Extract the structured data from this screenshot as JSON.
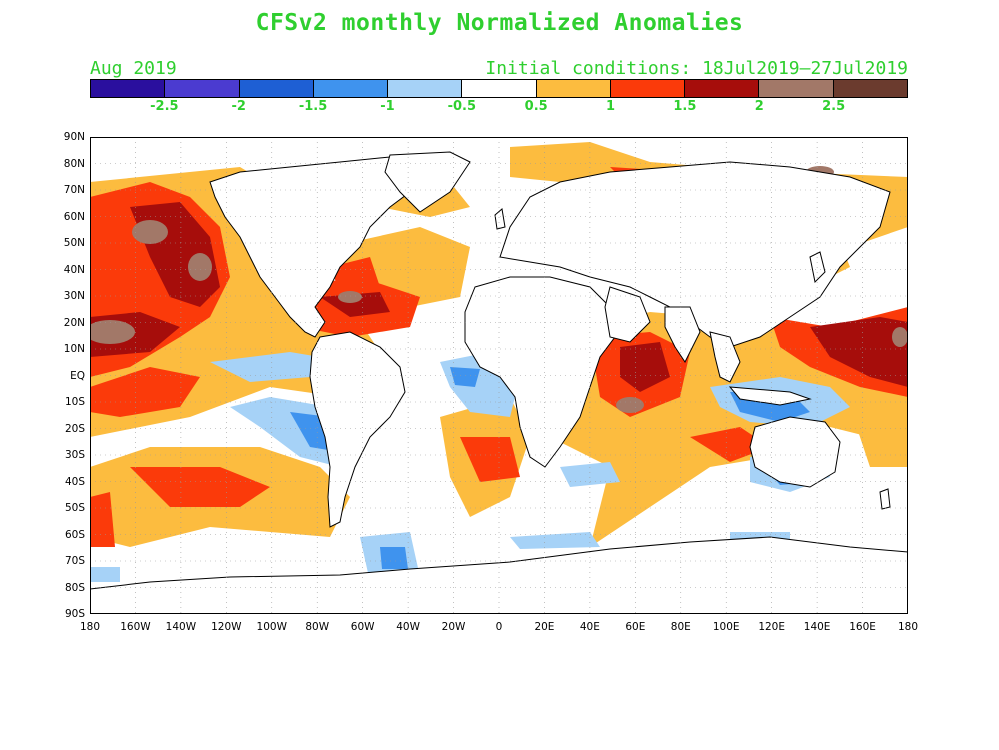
{
  "title": "CFSv2 monthly Normalized Anomalies",
  "month": "Aug 2019",
  "initial_conditions": "Initial conditions: 18Jul2019—27Jul2019",
  "colorbar": {
    "colors": [
      "#2a0f9e",
      "#4b3bd0",
      "#1e5fd4",
      "#3f93ee",
      "#a6d2f7",
      "#ffffff",
      "#fcbc3f",
      "#fb3a0a",
      "#a60d0b",
      "#a27868",
      "#6b3b2e"
    ],
    "labels": [
      "-2.5",
      "-2",
      "-1.5",
      "-1",
      "-0.5",
      "0.5",
      "1",
      "1.5",
      "2",
      "2.5"
    ]
  },
  "latitude_labels": [
    "90N",
    "80N",
    "70N",
    "60N",
    "50N",
    "40N",
    "30N",
    "20N",
    "10N",
    "EQ",
    "10S",
    "20S",
    "30S",
    "40S",
    "50S",
    "60S",
    "70S",
    "80S",
    "90S"
  ],
  "longitude_labels": [
    "180",
    "160W",
    "140W",
    "120W",
    "100W",
    "80W",
    "60W",
    "40W",
    "20W",
    "0",
    "20E",
    "40E",
    "60E",
    "80E",
    "100E",
    "120E",
    "140E",
    "160E",
    "180"
  ],
  "map_colors": {
    "land": "#ffffff",
    "coast": "#000000",
    "grid": "#9a9a9a"
  }
}
